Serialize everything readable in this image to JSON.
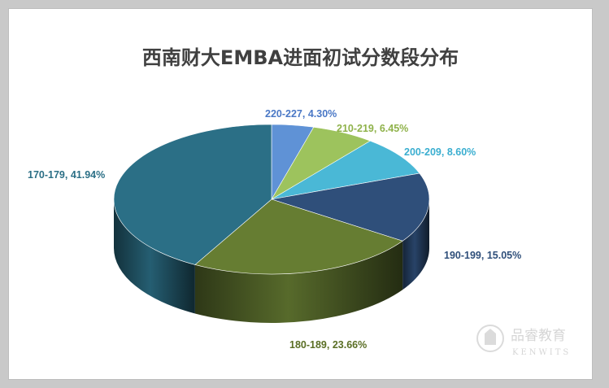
{
  "chart_data": {
    "type": "pie",
    "title": "西南财大EMBA进面初试分数段分布",
    "slices": [
      {
        "category": "220-227",
        "value": 4.3,
        "label": "220-227, 4.30%",
        "color": "#5f92d6",
        "label_color": "#4a78c6"
      },
      {
        "category": "210-219",
        "value": 6.45,
        "label": "210-219, 6.45%",
        "color": "#9dc35d",
        "label_color": "#8fb24a"
      },
      {
        "category": "200-209",
        "value": 8.6,
        "label": "200-209, 8.60%",
        "color": "#4ab8d6",
        "label_color": "#3aaed0"
      },
      {
        "category": "190-199",
        "value": 15.05,
        "label": "190-199, 15.05%",
        "color": "#2f4f7a",
        "label_color": "#2f4f7a"
      },
      {
        "category": "180-189",
        "value": 23.66,
        "label": "180-189, 23.66%",
        "color": "#667d32",
        "label_color": "#5a6e24"
      },
      {
        "category": "170-179",
        "value": 41.94,
        "label": "170-179, 41.94%",
        "color": "#2b6f86",
        "label_color": "#2b6f86"
      }
    ],
    "legend": "none",
    "style": "3d-pie"
  },
  "watermark": {
    "brand_cn": "品睿教育",
    "brand_en": "KENWITS"
  }
}
